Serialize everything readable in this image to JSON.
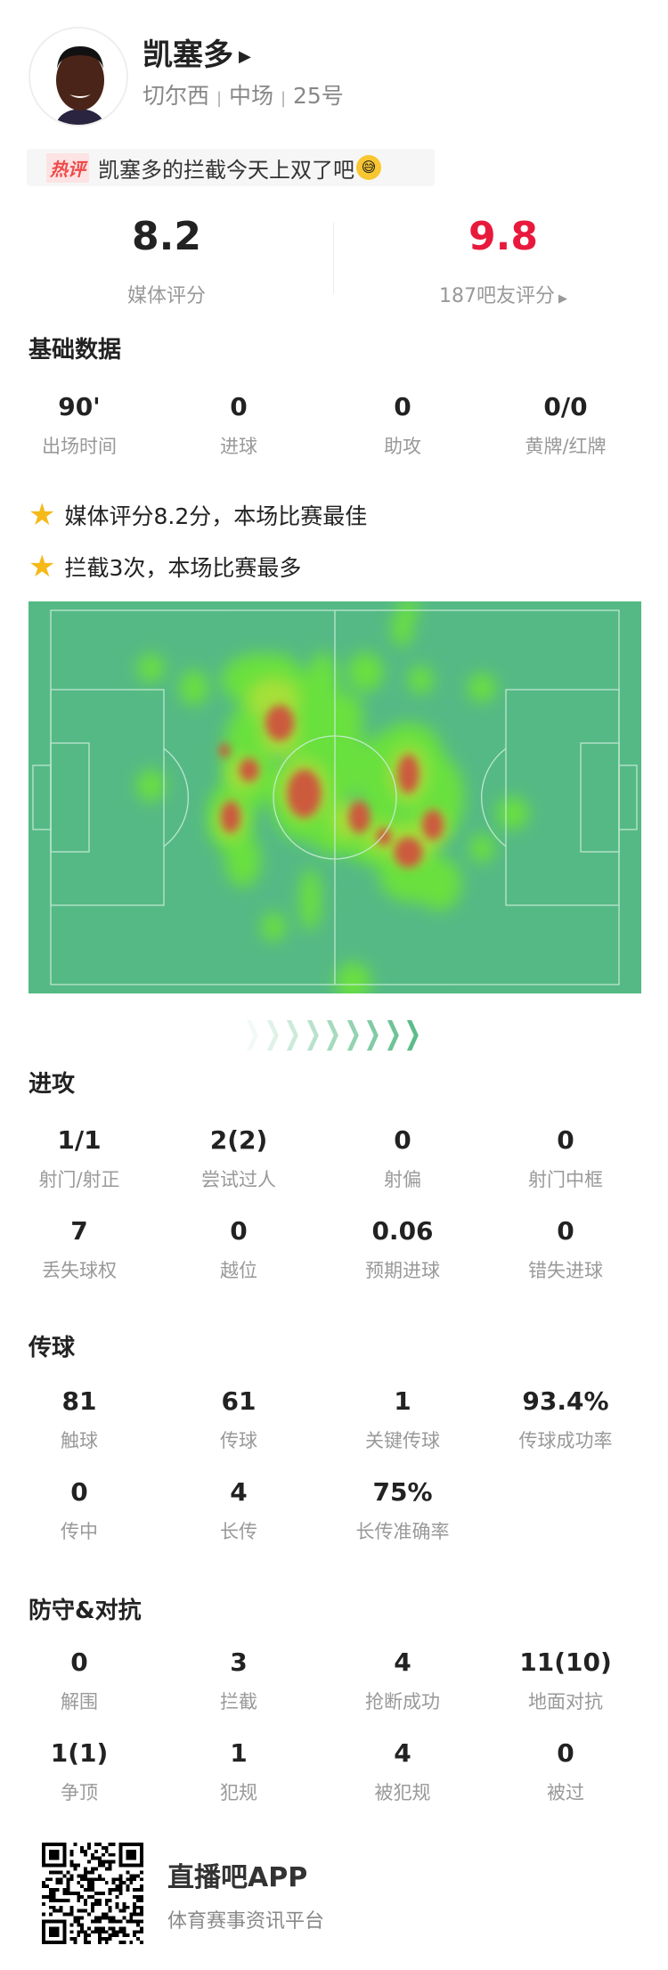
{
  "player": {
    "name": "凯塞多",
    "team": "切尔西",
    "position": "中场",
    "number": "25号",
    "sep": "|"
  },
  "hot_comment": {
    "tag": "热评",
    "text": "凯塞多的拦截今天上双了吧",
    "emoji": "grinning-sweat-emoji"
  },
  "ratings": {
    "media": {
      "value": "8.2",
      "label": "媒体评分"
    },
    "fans": {
      "value": "9.8",
      "label": "187吧友评分",
      "color": "#e8193c"
    }
  },
  "basic": {
    "title": "基础数据",
    "stats": [
      {
        "value": "90'",
        "label": "出场时间"
      },
      {
        "value": "0",
        "label": "进球"
      },
      {
        "value": "0",
        "label": "助攻"
      },
      {
        "value": "0/0",
        "label": "黄牌/红牌"
      }
    ]
  },
  "highlights": [
    "媒体评分8.2分，本场比赛最佳",
    "拦截3次，本场比赛最多"
  ],
  "heatmap": {
    "pitch_color": "#55b985",
    "attack_direction": "right"
  },
  "attack": {
    "title": "进攻",
    "stats": [
      {
        "value": "1/1",
        "label": "射门/射正"
      },
      {
        "value": "2(2)",
        "label": "尝试过人"
      },
      {
        "value": "0",
        "label": "射偏"
      },
      {
        "value": "0",
        "label": "射门中框"
      },
      {
        "value": "7",
        "label": "丢失球权"
      },
      {
        "value": "0",
        "label": "越位"
      },
      {
        "value": "0.06",
        "label": "预期进球"
      },
      {
        "value": "0",
        "label": "错失进球"
      }
    ]
  },
  "passing": {
    "title": "传球",
    "stats": [
      {
        "value": "81",
        "label": "触球"
      },
      {
        "value": "61",
        "label": "传球"
      },
      {
        "value": "1",
        "label": "关键传球"
      },
      {
        "value": "93.4%",
        "label": "传球成功率"
      },
      {
        "value": "0",
        "label": "传中"
      },
      {
        "value": "4",
        "label": "长传"
      },
      {
        "value": "75%",
        "label": "长传准确率"
      }
    ]
  },
  "defense": {
    "title": "防守&对抗",
    "stats": [
      {
        "value": "0",
        "label": "解围"
      },
      {
        "value": "3",
        "label": "拦截"
      },
      {
        "value": "4",
        "label": "抢断成功"
      },
      {
        "value": "11(10)",
        "label": "地面对抗"
      },
      {
        "value": "1(1)",
        "label": "争顶"
      },
      {
        "value": "1",
        "label": "犯规"
      },
      {
        "value": "4",
        "label": "被犯规"
      },
      {
        "value": "0",
        "label": "被过"
      }
    ]
  },
  "footer": {
    "app_name": "直播吧APP",
    "tagline": "体育赛事资讯平台"
  }
}
